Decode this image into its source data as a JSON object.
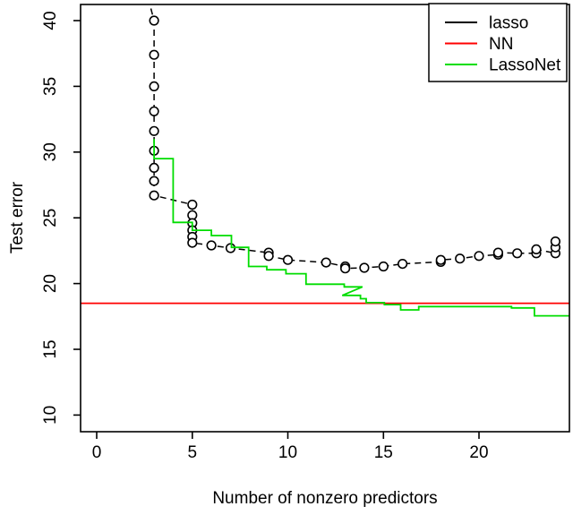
{
  "chart_data": {
    "type": "line",
    "title": "",
    "xlabel": "Number of nonzero predictors",
    "ylabel": "Test error",
    "x_ticks": [
      0,
      5,
      10,
      15,
      20
    ],
    "y_ticks": [
      10,
      15,
      20,
      25,
      30,
      35,
      40
    ],
    "xlim": [
      -0.85,
      24.75
    ],
    "ylim": [
      8.7,
      41.2
    ],
    "grid": false,
    "legend": {
      "position": "top-right",
      "entries": [
        {
          "label": "lasso",
          "color": "#000000",
          "style": "dashed-with-circles"
        },
        {
          "label": "NN",
          "color": "#ff0000",
          "style": "solid-horizontal"
        },
        {
          "label": "LassoNet",
          "color": "#00dd00",
          "style": "solid-steps"
        }
      ]
    },
    "series": [
      {
        "name": "lasso",
        "type": "dashed-line-with-open-circle-markers",
        "color": "#000000",
        "entry_point": [
          2.55,
          42.5
        ],
        "points": [
          [
            3,
            40.0
          ],
          [
            3,
            37.4
          ],
          [
            3,
            35.0
          ],
          [
            3,
            33.1
          ],
          [
            3,
            31.6
          ],
          [
            3,
            30.1
          ],
          [
            3,
            28.8
          ],
          [
            3,
            27.8
          ],
          [
            3,
            26.7
          ],
          [
            5,
            26.0
          ],
          [
            5,
            25.2
          ],
          [
            5,
            24.6
          ],
          [
            5,
            24.05
          ],
          [
            5,
            23.55
          ],
          [
            5,
            23.1
          ],
          [
            6,
            22.9
          ],
          [
            7,
            22.7
          ],
          [
            9,
            22.35
          ],
          [
            9,
            22.1
          ],
          [
            10,
            21.8
          ],
          [
            12,
            21.6
          ],
          [
            13,
            21.3
          ],
          [
            13,
            21.15
          ],
          [
            14,
            21.2
          ],
          [
            15,
            21.3
          ],
          [
            16,
            21.5
          ],
          [
            18,
            21.65
          ],
          [
            18,
            21.8
          ],
          [
            19,
            21.9
          ],
          [
            20,
            22.1
          ],
          [
            21,
            22.2
          ],
          [
            21,
            22.35
          ],
          [
            22,
            22.3
          ],
          [
            23,
            22.3
          ],
          [
            23,
            22.6
          ],
          [
            24,
            22.3
          ],
          [
            24,
            22.75
          ],
          [
            24,
            23.2
          ]
        ]
      },
      {
        "name": "NN",
        "type": "horizontal-line",
        "color": "#ff0000",
        "value": 18.5
      },
      {
        "name": "LassoNet",
        "type": "step-line",
        "color": "#00dd00",
        "path": [
          [
            3,
            31.0
          ],
          [
            3,
            29.5
          ],
          [
            4,
            29.5
          ],
          [
            4,
            24.65
          ],
          [
            5,
            24.65
          ],
          [
            5,
            24.05
          ],
          [
            6,
            24.05
          ],
          [
            6,
            23.65
          ],
          [
            7.05,
            23.65
          ],
          [
            7.05,
            22.75
          ],
          [
            7.95,
            22.75
          ],
          [
            7.95,
            21.3
          ],
          [
            8.9,
            21.3
          ],
          [
            8.9,
            21.05
          ],
          [
            9.9,
            21.05
          ],
          [
            9.9,
            20.75
          ],
          [
            10.95,
            20.75
          ],
          [
            10.95,
            19.95
          ],
          [
            12.95,
            19.95
          ],
          [
            12.95,
            19.75
          ],
          [
            13.9,
            19.75
          ],
          [
            12.85,
            19.1
          ],
          [
            13.8,
            19.1
          ],
          [
            13.8,
            18.85
          ],
          [
            14.1,
            18.85
          ],
          [
            14.1,
            18.55
          ],
          [
            15.05,
            18.55
          ],
          [
            15.05,
            18.4
          ],
          [
            15.9,
            18.4
          ],
          [
            15.9,
            18.0
          ],
          [
            16.85,
            18.0
          ],
          [
            16.85,
            18.25
          ],
          [
            21.7,
            18.25
          ],
          [
            21.7,
            18.15
          ],
          [
            22.9,
            18.15
          ],
          [
            22.9,
            17.55
          ],
          [
            24.75,
            17.55
          ]
        ]
      }
    ]
  }
}
